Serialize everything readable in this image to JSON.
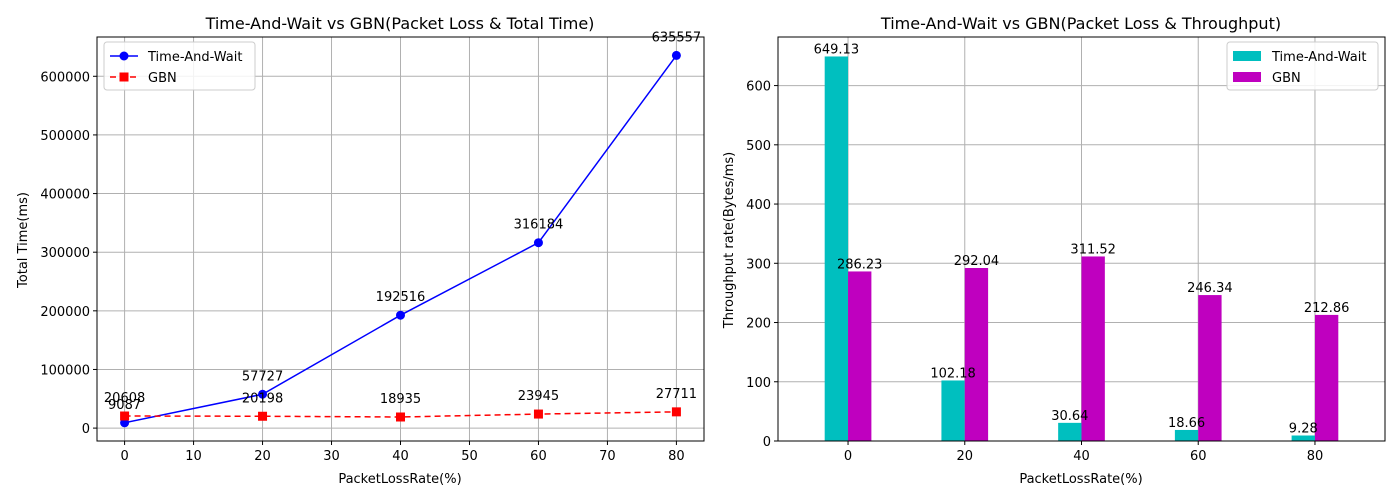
{
  "chart_data": [
    {
      "type": "line",
      "title": "Time-And-Wait vs GBN(Packet Loss & Total Time)",
      "xlabel": "PacketLossRate(%)",
      "ylabel": "Total Time(ms)",
      "x": [
        0,
        20,
        40,
        60,
        80
      ],
      "xlim": [
        -4,
        84
      ],
      "ylim": [
        -22000,
        667000
      ],
      "xticks": [
        "0",
        "10",
        "20",
        "30",
        "40",
        "50",
        "60",
        "70",
        "80"
      ],
      "yticks": [
        "0",
        "100000",
        "200000",
        "300000",
        "400000",
        "500000",
        "600000"
      ],
      "grid": true,
      "legend_position": "upper-left",
      "series": [
        {
          "name": "Time-And-Wait",
          "color": "#0000ff",
          "marker": "circle",
          "linestyle": "solid",
          "values": [
            9087,
            57727,
            192516,
            316184,
            635557
          ],
          "labels": [
            "9087",
            "57727",
            "192516",
            "316184",
            "635557"
          ]
        },
        {
          "name": "GBN",
          "color": "#ff0000",
          "marker": "square",
          "linestyle": "dashed",
          "values": [
            20608,
            20198,
            18935,
            23945,
            27711
          ],
          "labels": [
            "20608",
            "20198",
            "18935",
            "23945",
            "27711"
          ]
        }
      ]
    },
    {
      "type": "bar",
      "title": "Time-And-Wait vs GBN(Packet Loss & Throughput)",
      "xlabel": "PacketLossRate(%)",
      "ylabel": "Throughput rate(Bytes/ms)",
      "categories": [
        "0",
        "20",
        "40",
        "60",
        "80"
      ],
      "ylim": [
        0,
        682
      ],
      "yticks": [
        "0",
        "100",
        "200",
        "300",
        "400",
        "500",
        "600"
      ],
      "grid": true,
      "legend_position": "upper-right",
      "series": [
        {
          "name": "Time-And-Wait",
          "color": "#00bfbf",
          "values": [
            649.13,
            102.18,
            30.64,
            18.66,
            9.28
          ],
          "labels": [
            "649.13",
            "102.18",
            "30.64",
            "18.66",
            "9.28"
          ]
        },
        {
          "name": "GBN",
          "color": "#bf00bf",
          "values": [
            286.23,
            292.04,
            311.52,
            246.34,
            212.86
          ],
          "labels": [
            "286.23",
            "292.04",
            "311.52",
            "246.34",
            "212.86"
          ]
        }
      ]
    }
  ]
}
